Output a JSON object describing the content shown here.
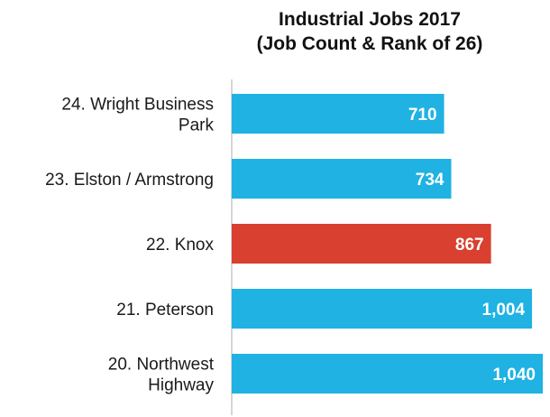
{
  "chart_data": {
    "type": "bar",
    "orientation": "horizontal",
    "title": "Industrial Jobs 2017",
    "subtitle": "(Job Count & Rank of 26)",
    "xlabel": "",
    "ylabel": "",
    "grid": false,
    "legend": "none",
    "categories": [
      [
        "24. Wright Business",
        "Park"
      ],
      [
        "23. Elston / Armstrong"
      ],
      [
        "22. Knox"
      ],
      [
        "21. Peterson"
      ],
      [
        "20. Northwest",
        "Highway"
      ]
    ],
    "values": [
      710,
      734,
      867,
      1004,
      1040
    ],
    "value_labels": [
      "710",
      "734",
      "867",
      "1,004",
      "1,040"
    ],
    "bar_colors": [
      "#1FB2E3",
      "#1FB2E3",
      "#D9402F",
      "#1FB2E3",
      "#1FB2E3"
    ],
    "label_color": "#ffffff",
    "axis_color": "#c8c8c8",
    "xlim": [
      0,
      1040
    ]
  }
}
